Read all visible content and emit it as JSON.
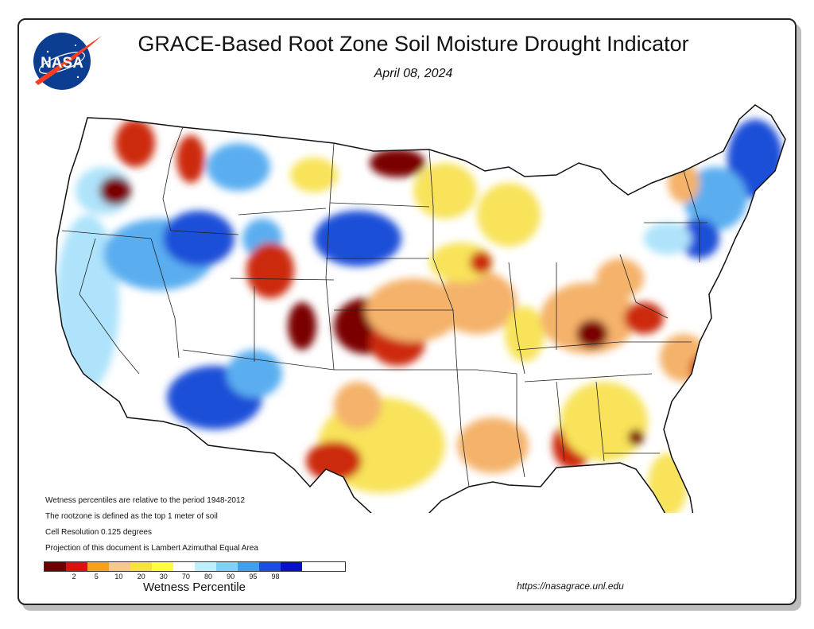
{
  "header": {
    "title": "GRACE-Based Root Zone Soil  Moisture Drought Indicator",
    "date": "April 08, 2024",
    "logo_text": "NASA"
  },
  "notes": [
    "Wetness percentiles are relative to the period 1948-2012",
    "The rootzone is defined as the top 1 meter of soil",
    "Cell Resolution 0.125 degrees",
    "Projection of this document is Lambert Azimuthal Equal Area"
  ],
  "legend": {
    "title": "Wetness Percentile",
    "colors": [
      "#6e0000",
      "#dd1010",
      "#f7a020",
      "#f5c890",
      "#f7e240",
      "#ffff40",
      "#ffffff",
      "#bfefff",
      "#7cd3f7",
      "#3fa0f0",
      "#1a4fe0",
      "#0a10c8"
    ],
    "tick_labels": [
      "2",
      "5",
      "10",
      "20",
      "30",
      "70",
      "80",
      "90",
      "95",
      "98"
    ]
  },
  "url": "https://nasagrace.unl.edu",
  "map": {
    "blob_colors": {
      "dry_extreme": "#7a0000",
      "dry_severe": "#cc2a10",
      "dry_moderate": "#f4b26a",
      "dry_light": "#f8e35a",
      "neutral": "#ffffff",
      "wet_light": "#aee3fb",
      "wet_moderate": "#5aaef0",
      "wet_heavy": "#1d4fd8"
    }
  }
}
